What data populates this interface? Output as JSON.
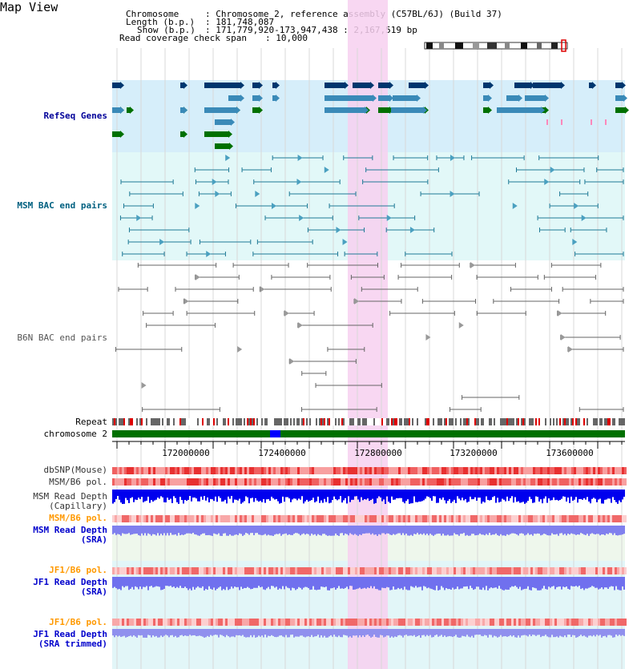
{
  "page": {
    "title": "Map View"
  },
  "header": {
    "chromosome_key": "Chromosome",
    "chromosome_value": ": Chromosome 2, reference assembly (C57BL/6J) (Build 37)",
    "length_key": "Length (b.p.)",
    "length_value": ": 181,748,087",
    "show_key": "Show (b.p.)",
    "show_value": ": 171,779,920-173,947,438 : 2,167,519 bp",
    "coverage_key": "Read coverage check span",
    "coverage_value": ": 10,000"
  },
  "tracks": {
    "refseq": {
      "label": "RefSeq Genes",
      "color": "#000099"
    },
    "msm_bac": {
      "label": "MSM BAC end pairs",
      "color": "#006080"
    },
    "b6n_bac": {
      "label": "B6N BAC end pairs",
      "color": "#555555"
    },
    "repeat": {
      "label": "Repeat"
    },
    "chromosome": {
      "label": "chromosome 2"
    },
    "dbsnp": {
      "label": "dbSNP(Mouse)"
    },
    "msm_b6_pol_1": {
      "label": "MSM/B6 pol."
    },
    "msm_read_depth_cap": {
      "label_1": "MSM Read Depth",
      "label_2": "(Capillary)"
    },
    "msm_b6_pol_2": {
      "label": "MSM/B6 pol.",
      "color": "#ff9900"
    },
    "msm_read_depth_sra": {
      "label_1": "MSM Read Depth",
      "label_2": "(SRA)",
      "color": "#0000cc"
    },
    "jf1_b6_pol_1": {
      "label": "JF1/B6 pol.",
      "color": "#ff9900"
    },
    "jf1_read_depth_sra": {
      "label_1": "JF1 Read Depth",
      "label_2": "(SRA)",
      "color": "#0000cc"
    },
    "jf1_b6_pol_2": {
      "label": "JF1/B6 pol.",
      "color": "#ff9900"
    },
    "jf1_read_depth_trim": {
      "label_1": "JF1 Read Depth",
      "label_2": "(SRA trimmed)",
      "color": "#0000cc"
    }
  },
  "ruler": {
    "ticks": [
      "172000000",
      "172400000",
      "172800000",
      "173200000",
      "173600000"
    ]
  },
  "colors": {
    "highlight": "#f7d0f0",
    "refseq_bg": "#d6eefa",
    "msm_bg": "#e2f8f8",
    "gene_navy": "#00366e",
    "gene_blue": "#3a8ab8",
    "gene_green": "#007000",
    "chrom_green": "#007000",
    "chrom_blue": "#0000ff"
  }
}
